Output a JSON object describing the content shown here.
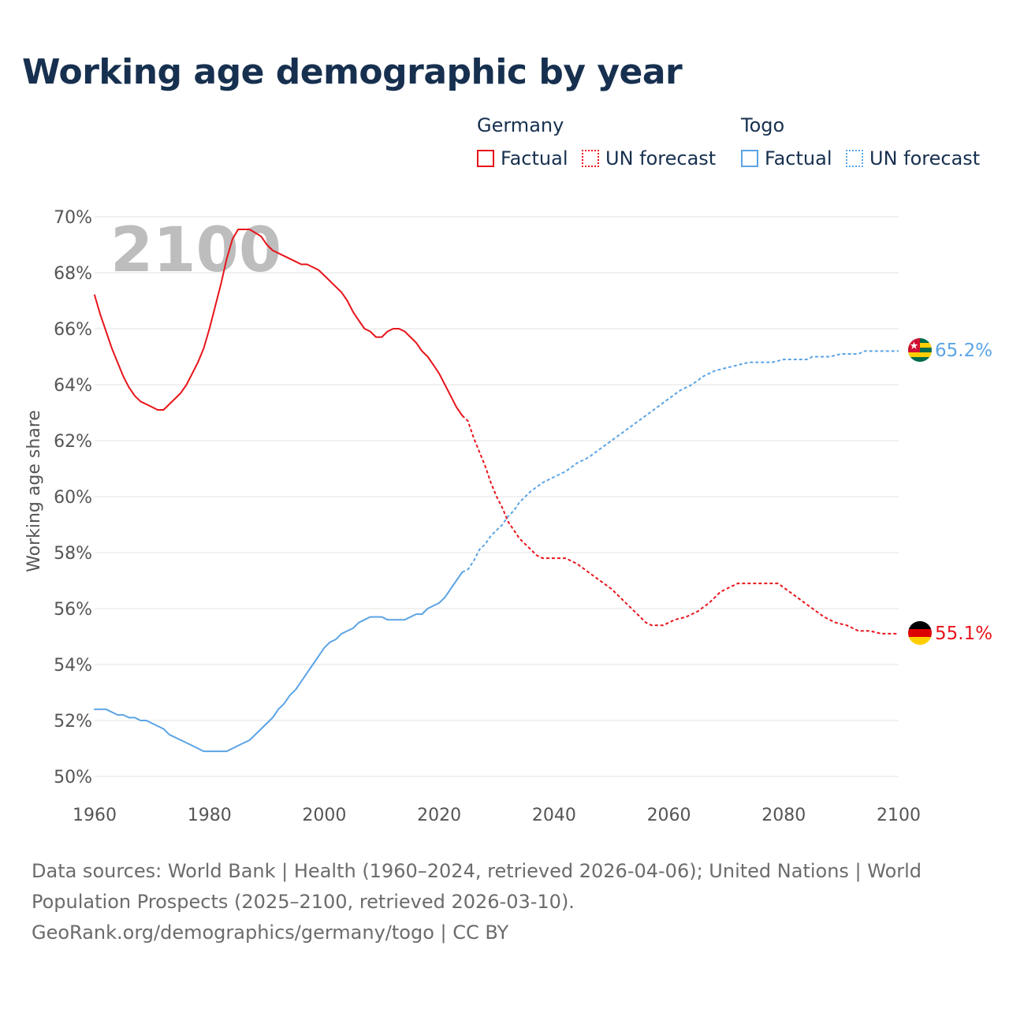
{
  "title": "Working age demographic by year",
  "legend": {
    "groups": [
      {
        "name": "Germany",
        "color": "#e8141b",
        "factual_label": "Factual",
        "forecast_label": "UN forecast"
      },
      {
        "name": "Togo",
        "color": "#5ba4e5",
        "factual_label": "Factual",
        "forecast_label": "UN forecast"
      }
    ]
  },
  "source": {
    "line1": "Data sources: World Bank | Health (1960–2024, retrieved 2026-04-06); United Nations | World",
    "line2": "Population Prospects (2025–2100, retrieved 2026-03-10).",
    "line3": "GeoRank.org/demographics/germany/togo | CC BY"
  },
  "chart_data": {
    "type": "line",
    "title": "Working age demographic by year",
    "xlabel": "",
    "ylabel": "Working age share",
    "xlim": [
      1960,
      2100
    ],
    "ylim": [
      50,
      70
    ],
    "x_ticks": [
      1960,
      1980,
      2000,
      2020,
      2040,
      2060,
      2080,
      2100
    ],
    "y_ticks": [
      50,
      52,
      54,
      56,
      58,
      60,
      62,
      64,
      66,
      68,
      70
    ],
    "y_tick_labels": [
      "50%",
      "52%",
      "54%",
      "56%",
      "58%",
      "60%",
      "62%",
      "64%",
      "66%",
      "68%",
      "70%"
    ],
    "grid": true,
    "year_overlay": "2100",
    "factual_end_year": 2024,
    "series": [
      {
        "name": "Germany",
        "color": "#e8141b",
        "end_label": "55.1%",
        "flag": "germany-flag",
        "points": [
          [
            1960,
            67.2
          ],
          [
            1961,
            66.5
          ],
          [
            1962,
            65.9
          ],
          [
            1963,
            65.3
          ],
          [
            1964,
            64.8
          ],
          [
            1965,
            64.3
          ],
          [
            1966,
            63.9
          ],
          [
            1967,
            63.6
          ],
          [
            1968,
            63.4
          ],
          [
            1970,
            63.2
          ],
          [
            1971,
            63.1
          ],
          [
            1972,
            63.1
          ],
          [
            1973,
            63.3
          ],
          [
            1975,
            63.7
          ],
          [
            1976,
            64.0
          ],
          [
            1977,
            64.4
          ],
          [
            1978,
            64.8
          ],
          [
            1979,
            65.3
          ],
          [
            1980,
            66.0
          ],
          [
            1981,
            66.8
          ],
          [
            1982,
            67.6
          ],
          [
            1983,
            68.5
          ],
          [
            1984,
            69.2
          ],
          [
            1985,
            69.55
          ],
          [
            1987,
            69.55
          ],
          [
            1989,
            69.3
          ],
          [
            1990,
            69.0
          ],
          [
            1991,
            68.8
          ],
          [
            1993,
            68.6
          ],
          [
            1995,
            68.4
          ],
          [
            1996,
            68.3
          ],
          [
            1997,
            68.3
          ],
          [
            1999,
            68.1
          ],
          [
            2000,
            67.9
          ],
          [
            2001,
            67.7
          ],
          [
            2002,
            67.5
          ],
          [
            2003,
            67.3
          ],
          [
            2004,
            67.0
          ],
          [
            2005,
            66.6
          ],
          [
            2006,
            66.3
          ],
          [
            2007,
            66.0
          ],
          [
            2008,
            65.9
          ],
          [
            2009,
            65.7
          ],
          [
            2010,
            65.7
          ],
          [
            2011,
            65.9
          ],
          [
            2012,
            66.0
          ],
          [
            2013,
            66.0
          ],
          [
            2014,
            65.9
          ],
          [
            2015,
            65.7
          ],
          [
            2016,
            65.5
          ],
          [
            2017,
            65.2
          ],
          [
            2018,
            65.0
          ],
          [
            2019,
            64.7
          ],
          [
            2020,
            64.4
          ],
          [
            2021,
            64.0
          ],
          [
            2022,
            63.6
          ],
          [
            2023,
            63.2
          ],
          [
            2024,
            62.9
          ],
          [
            2025,
            62.7
          ],
          [
            2026,
            62.1
          ],
          [
            2027,
            61.6
          ],
          [
            2028,
            61.1
          ],
          [
            2029,
            60.5
          ],
          [
            2030,
            60.0
          ],
          [
            2031,
            59.6
          ],
          [
            2032,
            59.1
          ],
          [
            2033,
            58.8
          ],
          [
            2034,
            58.5
          ],
          [
            2035,
            58.3
          ],
          [
            2036,
            58.1
          ],
          [
            2037,
            57.9
          ],
          [
            2038,
            57.8
          ],
          [
            2040,
            57.8
          ],
          [
            2042,
            57.8
          ],
          [
            2044,
            57.6
          ],
          [
            2046,
            57.3
          ],
          [
            2048,
            57.0
          ],
          [
            2050,
            56.7
          ],
          [
            2052,
            56.3
          ],
          [
            2054,
            55.9
          ],
          [
            2056,
            55.5
          ],
          [
            2057,
            55.4
          ],
          [
            2059,
            55.4
          ],
          [
            2061,
            55.6
          ],
          [
            2063,
            55.7
          ],
          [
            2065,
            55.9
          ],
          [
            2067,
            56.2
          ],
          [
            2069,
            56.6
          ],
          [
            2071,
            56.8
          ],
          [
            2072,
            56.9
          ],
          [
            2075,
            56.9
          ],
          [
            2079,
            56.9
          ],
          [
            2081,
            56.6
          ],
          [
            2083,
            56.3
          ],
          [
            2085,
            56.0
          ],
          [
            2087,
            55.7
          ],
          [
            2089,
            55.5
          ],
          [
            2091,
            55.4
          ],
          [
            2093,
            55.2
          ],
          [
            2095,
            55.2
          ],
          [
            2097,
            55.1
          ],
          [
            2100,
            55.1
          ]
        ]
      },
      {
        "name": "Togo",
        "color": "#5ba4e5",
        "end_label": "65.2%",
        "flag": "togo-flag",
        "points": [
          [
            1960,
            52.4
          ],
          [
            1962,
            52.4
          ],
          [
            1964,
            52.2
          ],
          [
            1965,
            52.2
          ],
          [
            1966,
            52.1
          ],
          [
            1967,
            52.1
          ],
          [
            1968,
            52.0
          ],
          [
            1969,
            52.0
          ],
          [
            1971,
            51.8
          ],
          [
            1972,
            51.7
          ],
          [
            1973,
            51.5
          ],
          [
            1975,
            51.3
          ],
          [
            1977,
            51.1
          ],
          [
            1979,
            50.9
          ],
          [
            1981,
            50.9
          ],
          [
            1983,
            50.9
          ],
          [
            1985,
            51.1
          ],
          [
            1987,
            51.3
          ],
          [
            1989,
            51.7
          ],
          [
            1991,
            52.1
          ],
          [
            1992,
            52.4
          ],
          [
            1993,
            52.6
          ],
          [
            1994,
            52.9
          ],
          [
            1995,
            53.1
          ],
          [
            1996,
            53.4
          ],
          [
            1997,
            53.7
          ],
          [
            1998,
            54.0
          ],
          [
            1999,
            54.3
          ],
          [
            2000,
            54.6
          ],
          [
            2001,
            54.8
          ],
          [
            2002,
            54.9
          ],
          [
            2003,
            55.1
          ],
          [
            2004,
            55.2
          ],
          [
            2005,
            55.3
          ],
          [
            2006,
            55.5
          ],
          [
            2007,
            55.6
          ],
          [
            2008,
            55.7
          ],
          [
            2010,
            55.7
          ],
          [
            2011,
            55.6
          ],
          [
            2014,
            55.6
          ],
          [
            2015,
            55.7
          ],
          [
            2016,
            55.8
          ],
          [
            2017,
            55.8
          ],
          [
            2018,
            56.0
          ],
          [
            2020,
            56.2
          ],
          [
            2021,
            56.4
          ],
          [
            2022,
            56.7
          ],
          [
            2023,
            57.0
          ],
          [
            2024,
            57.3
          ],
          [
            2025,
            57.4
          ],
          [
            2026,
            57.7
          ],
          [
            2027,
            58.1
          ],
          [
            2028,
            58.3
          ],
          [
            2029,
            58.6
          ],
          [
            2030,
            58.8
          ],
          [
            2031,
            59.0
          ],
          [
            2032,
            59.3
          ],
          [
            2033,
            59.5
          ],
          [
            2034,
            59.8
          ],
          [
            2035,
            60.0
          ],
          [
            2036,
            60.2
          ],
          [
            2038,
            60.5
          ],
          [
            2040,
            60.7
          ],
          [
            2042,
            60.9
          ],
          [
            2044,
            61.2
          ],
          [
            2046,
            61.4
          ],
          [
            2048,
            61.7
          ],
          [
            2050,
            62.0
          ],
          [
            2052,
            62.3
          ],
          [
            2054,
            62.6
          ],
          [
            2056,
            62.9
          ],
          [
            2058,
            63.2
          ],
          [
            2060,
            63.5
          ],
          [
            2062,
            63.8
          ],
          [
            2064,
            64.0
          ],
          [
            2066,
            64.3
          ],
          [
            2068,
            64.5
          ],
          [
            2070,
            64.6
          ],
          [
            2072,
            64.7
          ],
          [
            2074,
            64.8
          ],
          [
            2078,
            64.8
          ],
          [
            2080,
            64.9
          ],
          [
            2084,
            64.9
          ],
          [
            2085,
            65.0
          ],
          [
            2088,
            65.0
          ],
          [
            2090,
            65.1
          ],
          [
            2093,
            65.1
          ],
          [
            2094,
            65.2
          ],
          [
            2100,
            65.2
          ]
        ]
      }
    ]
  }
}
